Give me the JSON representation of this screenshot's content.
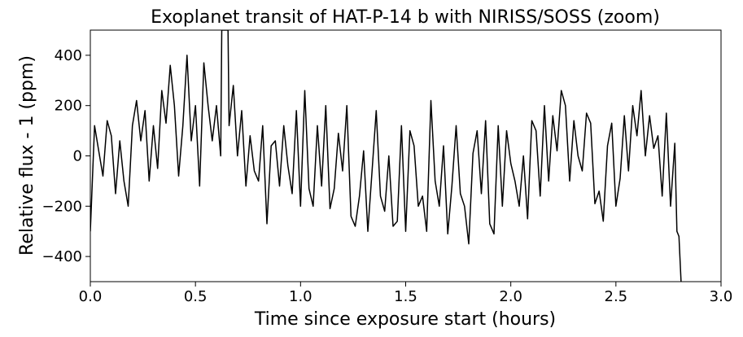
{
  "chart_data": {
    "type": "line",
    "title": "Exoplanet transit of HAT-P-14 b with NIRISS/SOSS (zoom)",
    "xlabel": "Time since exposure start (hours)",
    "ylabel": "Relative flux - 1 (ppm)",
    "xlim": [
      0.0,
      3.0
    ],
    "ylim": [
      -500,
      500
    ],
    "xticks": [
      0.0,
      0.5,
      1.0,
      1.5,
      2.0,
      2.5,
      3.0
    ],
    "xtick_labels": [
      "0.0",
      "0.5",
      "1.0",
      "1.5",
      "2.0",
      "2.5",
      "3.0"
    ],
    "yticks": [
      -400,
      -200,
      0,
      200,
      400
    ],
    "ytick_labels": [
      "−400",
      "−200",
      "0",
      "200",
      "400"
    ],
    "grid": false,
    "line_color": "#000000",
    "series": [
      {
        "x": [
          0.0,
          0.02,
          0.04,
          0.06,
          0.08,
          0.1,
          0.12,
          0.14,
          0.16,
          0.18,
          0.2,
          0.22,
          0.24,
          0.26,
          0.28,
          0.3,
          0.32,
          0.34,
          0.36,
          0.38,
          0.4,
          0.42,
          0.44,
          0.46,
          0.48,
          0.5,
          0.52,
          0.54,
          0.56,
          0.58,
          0.6,
          0.62,
          0.625,
          0.63,
          0.635,
          0.64,
          0.645,
          0.65,
          0.655,
          0.66,
          0.68,
          0.7,
          0.72,
          0.74,
          0.76,
          0.78,
          0.8,
          0.82,
          0.84,
          0.86,
          0.88,
          0.9,
          0.92,
          0.94,
          0.96,
          0.98,
          1.0,
          1.02,
          1.04,
          1.06,
          1.08,
          1.1,
          1.12,
          1.14,
          1.16,
          1.18,
          1.2,
          1.22,
          1.24,
          1.26,
          1.28,
          1.3,
          1.32,
          1.34,
          1.36,
          1.38,
          1.4,
          1.42,
          1.44,
          1.46,
          1.48,
          1.5,
          1.52,
          1.54,
          1.56,
          1.58,
          1.6,
          1.62,
          1.64,
          1.66,
          1.68,
          1.7,
          1.72,
          1.74,
          1.76,
          1.78,
          1.8,
          1.82,
          1.84,
          1.86,
          1.88,
          1.9,
          1.92,
          1.94,
          1.96,
          1.98,
          2.0,
          2.02,
          2.04,
          2.06,
          2.08,
          2.1,
          2.12,
          2.14,
          2.16,
          2.18,
          2.2,
          2.22,
          2.24,
          2.26,
          2.28,
          2.3,
          2.32,
          2.34,
          2.36,
          2.38,
          2.4,
          2.42,
          2.44,
          2.46,
          2.48,
          2.5,
          2.52,
          2.54,
          2.56,
          2.58,
          2.6,
          2.62,
          2.64,
          2.66,
          2.68,
          2.7,
          2.72,
          2.74,
          2.76,
          2.78,
          2.79,
          2.8,
          2.81
        ],
        "y": [
          -300,
          120,
          20,
          -80,
          140,
          80,
          -150,
          60,
          -100,
          -200,
          120,
          220,
          60,
          180,
          -100,
          120,
          -50,
          260,
          130,
          360,
          200,
          -80,
          120,
          400,
          60,
          200,
          -120,
          370,
          200,
          60,
          200,
          0,
          500,
          500,
          500,
          500,
          500,
          500,
          500,
          120,
          280,
          0,
          180,
          -120,
          80,
          -60,
          -100,
          120,
          -270,
          40,
          60,
          -120,
          120,
          -40,
          -150,
          180,
          -200,
          260,
          -130,
          -200,
          120,
          -120,
          200,
          -210,
          -130,
          90,
          -60,
          200,
          -240,
          -280,
          -160,
          20,
          -300,
          -60,
          180,
          -160,
          -220,
          0,
          -280,
          -260,
          120,
          -300,
          100,
          40,
          -200,
          -160,
          -300,
          220,
          -100,
          -200,
          40,
          -310,
          -120,
          120,
          -150,
          -200,
          -350,
          10,
          100,
          -150,
          140,
          -270,
          -310,
          120,
          -200,
          100,
          -30,
          -100,
          -200,
          0,
          -250,
          140,
          100,
          -160,
          200,
          -100,
          160,
          20,
          260,
          200,
          -100,
          140,
          0,
          -60,
          170,
          130,
          -190,
          -140,
          -260,
          40,
          130,
          -200,
          -90,
          160,
          -60,
          200,
          80,
          260,
          0,
          160,
          30,
          80,
          -160,
          170,
          -200,
          50,
          -300,
          -320,
          -500
        ]
      }
    ]
  }
}
